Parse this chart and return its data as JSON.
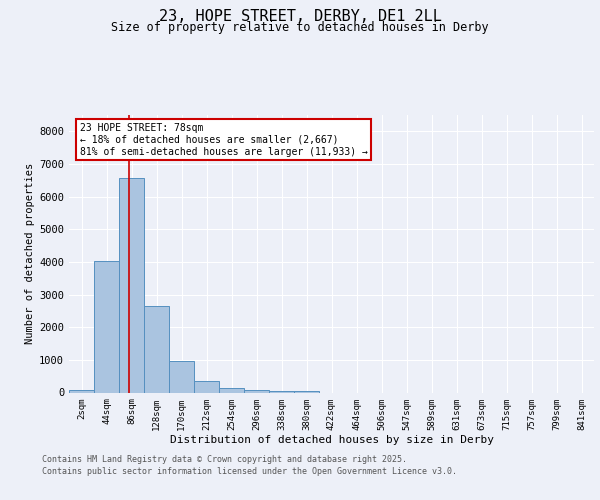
{
  "title_line1": "23, HOPE STREET, DERBY, DE1 2LL",
  "title_line2": "Size of property relative to detached houses in Derby",
  "xlabel": "Distribution of detached houses by size in Derby",
  "ylabel": "Number of detached properties",
  "bar_labels": [
    "2sqm",
    "44sqm",
    "86sqm",
    "128sqm",
    "170sqm",
    "212sqm",
    "254sqm",
    "296sqm",
    "338sqm",
    "380sqm",
    "422sqm",
    "464sqm",
    "506sqm",
    "547sqm",
    "589sqm",
    "631sqm",
    "673sqm",
    "715sqm",
    "757sqm",
    "799sqm",
    "841sqm"
  ],
  "bar_values": [
    75,
    4020,
    6580,
    2650,
    980,
    340,
    130,
    65,
    45,
    55,
    0,
    0,
    0,
    0,
    0,
    0,
    0,
    0,
    0,
    0,
    0
  ],
  "bar_color": "#aac4e0",
  "bar_edge_color": "#5590c0",
  "vline_x": 1.909,
  "annotation_text": "23 HOPE STREET: 78sqm\n← 18% of detached houses are smaller (2,667)\n81% of semi-detached houses are larger (11,933) →",
  "annotation_box_color": "#ffffff",
  "annotation_border_color": "#cc0000",
  "ylim": [
    0,
    8500
  ],
  "yticks": [
    0,
    1000,
    2000,
    3000,
    4000,
    5000,
    6000,
    7000,
    8000
  ],
  "footer_line1": "Contains HM Land Registry data © Crown copyright and database right 2025.",
  "footer_line2": "Contains public sector information licensed under the Open Government Licence v3.0.",
  "background_color": "#edf0f8",
  "plot_background": "#edf0f8",
  "grid_color": "#ffffff",
  "vline_color": "#cc0000"
}
